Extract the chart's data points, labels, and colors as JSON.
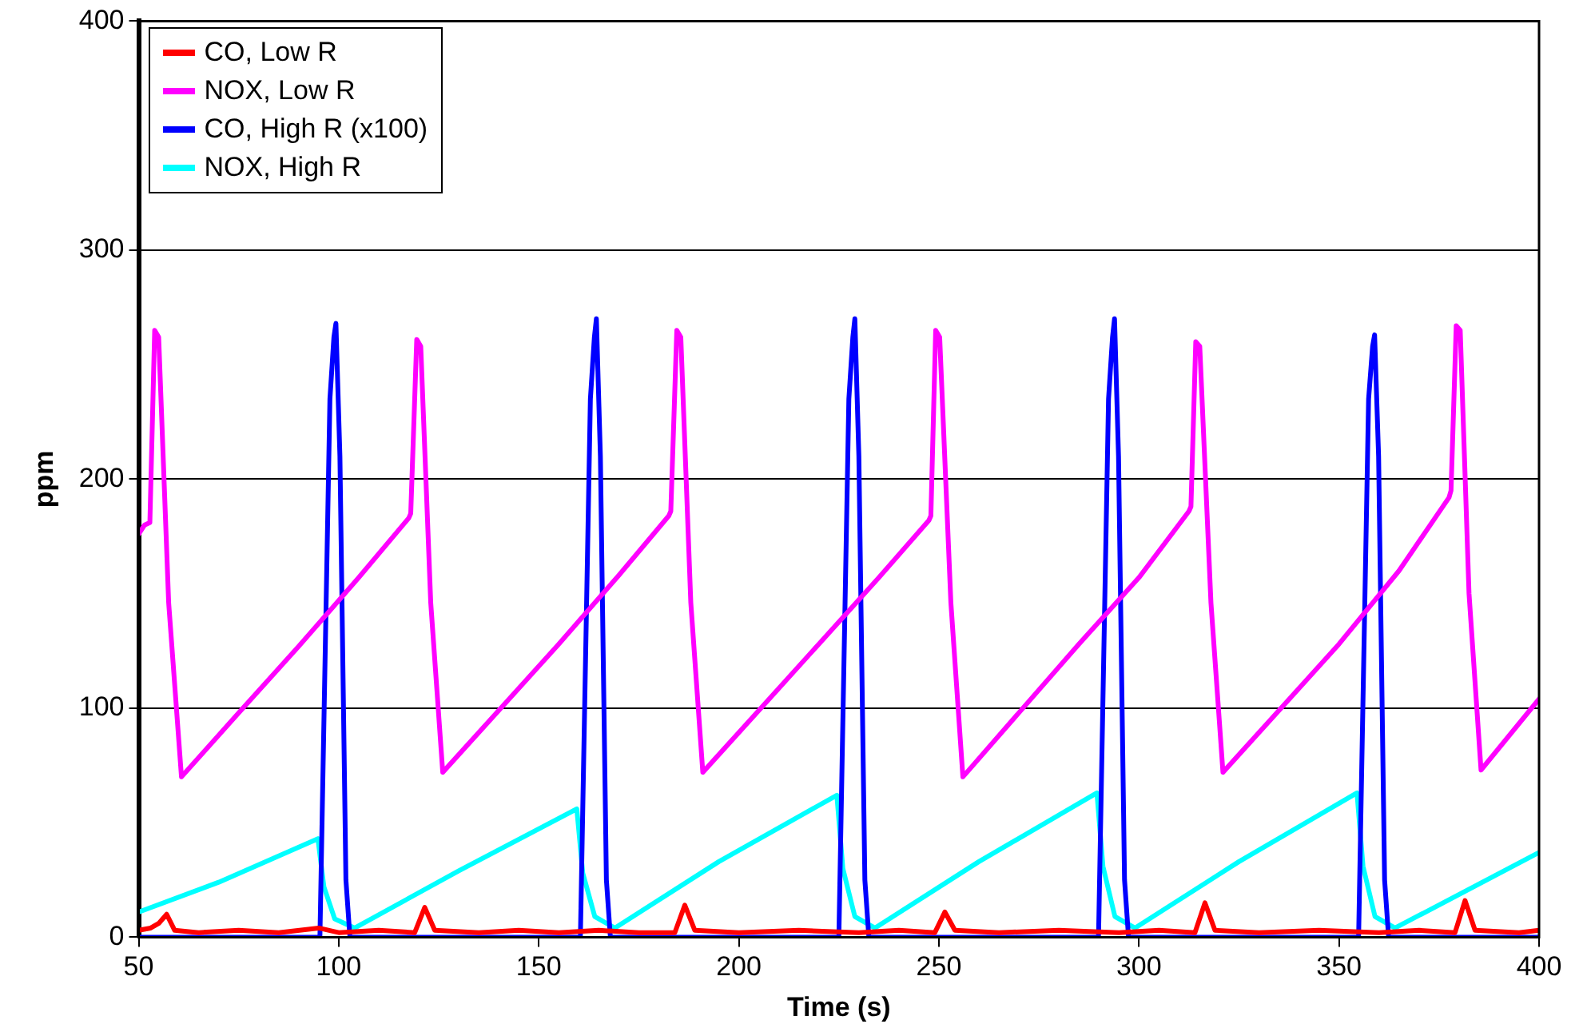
{
  "chart_data": {
    "type": "line",
    "xlabel": "Time (s)",
    "ylabel": "ppm",
    "xlim": [
      50,
      400
    ],
    "xticks": [
      50,
      100,
      150,
      200,
      250,
      300,
      350,
      400
    ],
    "ylim": [
      0,
      400
    ],
    "yticks": [
      0,
      100,
      200,
      300,
      400
    ],
    "grid": "y",
    "legend": "top left",
    "marker": "none",
    "line_style": "solid",
    "series": [
      {
        "name": "CO, Low R",
        "color": "#ff0000",
        "x": [
          50,
          53,
          55,
          57,
          59,
          65,
          75,
          85,
          95,
          100,
          110,
          119,
          121.5,
          124,
          135,
          145,
          155,
          165,
          175,
          184,
          186.5,
          189,
          200,
          215,
          230,
          240,
          249,
          251.5,
          254,
          265,
          280,
          295,
          305,
          314,
          316.5,
          319,
          330,
          345,
          360,
          370,
          379,
          381.5,
          384,
          395,
          400
        ],
        "values": [
          3,
          4,
          6,
          10,
          3,
          2,
          3,
          2,
          4,
          2,
          3,
          2,
          13,
          3,
          2,
          3,
          2,
          3,
          2,
          2,
          14,
          3,
          2,
          3,
          2,
          3,
          2,
          11,
          3,
          2,
          3,
          2,
          3,
          2,
          15,
          3,
          2,
          3,
          2,
          3,
          2,
          16,
          3,
          2,
          3
        ]
      },
      {
        "name": "NOX, Low R",
        "color": "#ff00ff",
        "x": [
          50,
          51.5,
          52.8,
          54,
          55,
          57.5,
          60.7,
          75,
          90,
          105,
          117.5,
          118,
          119.5,
          120.5,
          123,
          126,
          140,
          155,
          170,
          182.5,
          183,
          184.5,
          185.5,
          188,
          191,
          205,
          220,
          235,
          247.5,
          248,
          249.2,
          250.2,
          253,
          256,
          270,
          285,
          300,
          312.5,
          313,
          314.2,
          315.2,
          318,
          321,
          335,
          350,
          365,
          377.5,
          378,
          379.3,
          380.3,
          382.5,
          385.5,
          400
        ],
        "values": [
          176,
          180,
          181,
          265,
          262,
          146,
          70,
          98,
          127,
          157,
          183,
          185,
          261,
          258,
          146,
          72,
          99,
          128,
          158,
          184,
          186,
          265,
          262,
          146,
          72,
          99,
          128,
          157,
          182,
          184,
          265,
          262,
          146,
          70,
          98,
          128,
          157,
          186,
          188,
          260,
          258,
          146,
          72,
          99,
          128,
          160,
          192,
          195,
          267,
          265,
          150,
          73,
          104
        ]
      },
      {
        "name": "CO, High R (x100)",
        "color": "#0000ff",
        "x": [
          50,
          95.3,
          97.8,
          98.8,
          99.3,
          100.3,
          101.8,
          102.8,
          160.4,
          162.9,
          163.9,
          164.4,
          165.4,
          166.9,
          167.9,
          225,
          227.5,
          228.5,
          229,
          230,
          231.5,
          232.5,
          289.9,
          292.4,
          293.4,
          293.9,
          294.9,
          296.4,
          297.4,
          354.9,
          357.4,
          358.4,
          358.9,
          359.9,
          361.4,
          362.4,
          400
        ],
        "values": [
          0,
          0,
          235,
          262,
          268,
          210,
          25,
          0,
          0,
          235,
          262,
          270,
          210,
          25,
          0,
          0,
          235,
          262,
          270,
          210,
          25,
          0,
          0,
          235,
          262,
          270,
          210,
          25,
          0,
          0,
          235,
          258,
          263,
          210,
          25,
          0,
          0
        ]
      },
      {
        "name": "NOX, High R",
        "color": "#00ffff",
        "x": [
          50,
          70,
          94.8,
          96.3,
          99,
          104,
          130,
          159.5,
          161,
          164,
          169,
          195,
          224.5,
          226,
          229,
          234,
          260,
          289.5,
          291,
          294,
          299,
          325,
          354.5,
          356,
          359,
          364,
          400
        ],
        "values": [
          11,
          24,
          43,
          22,
          8,
          4,
          29,
          56,
          28,
          9,
          4,
          33,
          62,
          30,
          9,
          4,
          33,
          63,
          31,
          9,
          4,
          33,
          63,
          31,
          9,
          4,
          37
        ]
      }
    ]
  }
}
